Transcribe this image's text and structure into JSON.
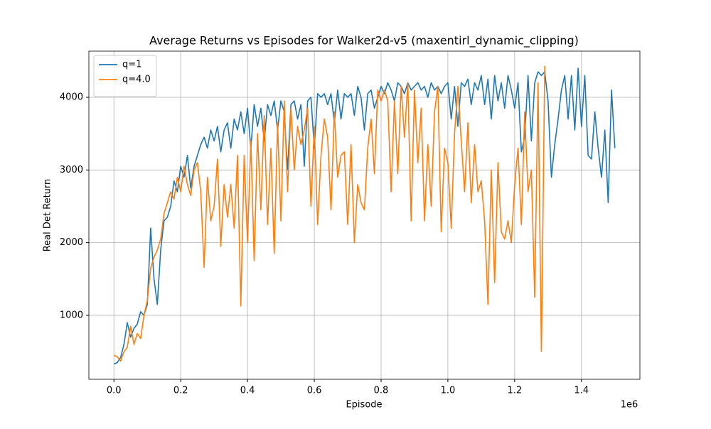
{
  "chart_data": {
    "type": "line",
    "title": "Average Returns vs Episodes for Walker2d-v5 (maxentirl_dynamic_clipping)",
    "x_label": "Episode",
    "x_offset_label": "1e6",
    "y_label": "Real Det Return",
    "x": [
      0,
      10000,
      20000,
      30000,
      40000,
      50000,
      60000,
      70000,
      80000,
      90000,
      100000,
      110000,
      120000,
      130000,
      140000,
      150000,
      160000,
      170000,
      180000,
      190000,
      200000,
      210000,
      220000,
      230000,
      240000,
      250000,
      260000,
      270000,
      280000,
      290000,
      300000,
      310000,
      320000,
      330000,
      340000,
      350000,
      360000,
      370000,
      380000,
      390000,
      400000,
      410000,
      420000,
      430000,
      440000,
      450000,
      460000,
      470000,
      480000,
      490000,
      500000,
      510000,
      520000,
      530000,
      540000,
      550000,
      560000,
      570000,
      580000,
      590000,
      600000,
      610000,
      620000,
      630000,
      640000,
      650000,
      660000,
      670000,
      680000,
      690000,
      700000,
      710000,
      720000,
      730000,
      740000,
      750000,
      760000,
      770000,
      780000,
      790000,
      800000,
      810000,
      820000,
      830000,
      840000,
      850000,
      860000,
      870000,
      880000,
      890000,
      900000,
      910000,
      920000,
      930000,
      940000,
      950000,
      960000,
      970000,
      980000,
      990000,
      1000000,
      1010000,
      1020000,
      1030000,
      1040000,
      1050000,
      1060000,
      1070000,
      1080000,
      1090000,
      1100000,
      1110000,
      1120000,
      1130000,
      1140000,
      1150000,
      1160000,
      1170000,
      1180000,
      1190000,
      1200000,
      1210000,
      1220000,
      1230000,
      1240000,
      1250000,
      1260000,
      1270000,
      1280000,
      1290000,
      1300000,
      1310000,
      1320000,
      1330000,
      1340000,
      1350000,
      1360000,
      1370000,
      1380000,
      1390000,
      1400000,
      1410000,
      1420000,
      1430000,
      1440000,
      1450000,
      1460000,
      1470000,
      1480000,
      1490000,
      1500000
    ],
    "series": [
      {
        "name": "q=1",
        "color": "#1f77b4",
        "values": [
          330,
          350,
          420,
          600,
          900,
          700,
          820,
          880,
          1050,
          1000,
          1150,
          2200,
          1500,
          1150,
          1900,
          2300,
          2350,
          2500,
          2850,
          2700,
          3050,
          2900,
          3200,
          2750,
          3050,
          3200,
          3350,
          3450,
          3300,
          3550,
          3400,
          3600,
          3250,
          3550,
          3650,
          3300,
          3700,
          3550,
          3800,
          3500,
          3850,
          3300,
          3900,
          3600,
          3850,
          3400,
          3900,
          3750,
          3950,
          3550,
          3950,
          3800,
          3000,
          3900,
          3950,
          3700,
          3900,
          3050,
          3950,
          4000,
          3300,
          4050,
          4000,
          4050,
          3900,
          4050,
          3650,
          4100,
          3700,
          4050,
          4000,
          4050,
          3750,
          4150,
          4000,
          3550,
          4050,
          4100,
          3850,
          4000,
          4150,
          4050,
          4200,
          4100,
          3950,
          4200,
          4150,
          4050,
          4200,
          4100,
          4150,
          4200,
          4100,
          4150,
          4000,
          4200,
          4100,
          4150,
          4050,
          4150,
          4200,
          3700,
          4150,
          3600,
          4200,
          4150,
          4250,
          3900,
          4200,
          4100,
          4300,
          3900,
          4250,
          3700,
          4300,
          3950,
          4200,
          3850,
          4300,
          4100,
          3850,
          4200,
          3250,
          3450,
          4300,
          3400,
          4200,
          4350,
          4300,
          4350,
          3950,
          2900,
          3350,
          3700,
          4100,
          4300,
          3700,
          4300,
          3550,
          4400,
          3600,
          4300,
          3200,
          3150,
          3800,
          3300,
          2900,
          3550,
          2550,
          4100,
          3300
        ]
      },
      {
        "name": "q=4.0",
        "color": "#ff7f0e",
        "values": [
          450,
          430,
          370,
          500,
          560,
          850,
          600,
          750,
          680,
          1000,
          1200,
          1650,
          1800,
          1900,
          2050,
          2400,
          2550,
          2700,
          2600,
          2900,
          2700,
          3050,
          2800,
          2650,
          3000,
          3100,
          2700,
          1660,
          2900,
          2300,
          2500,
          3150,
          1950,
          2800,
          2350,
          2800,
          2200,
          3200,
          1130,
          3200,
          2000,
          3400,
          1750,
          3500,
          2450,
          3750,
          2250,
          3300,
          1850,
          3650,
          2300,
          3950,
          2700,
          3850,
          3000,
          3600,
          3350,
          3550,
          3850,
          2500,
          3600,
          2250,
          3200,
          3700,
          3450,
          2450,
          3800,
          2900,
          3200,
          3250,
          2250,
          3350,
          2000,
          2800,
          2550,
          2450,
          3300,
          3700,
          2950,
          4100,
          3950,
          4100,
          3950,
          2700,
          3950,
          2950,
          4150,
          3450,
          4200,
          2300,
          4100,
          3100,
          3850,
          2300,
          3350,
          2500,
          3800,
          4150,
          2150,
          3300,
          3100,
          2200,
          3500,
          4150,
          3400,
          2700,
          3650,
          2550,
          3350,
          2700,
          2850,
          2300,
          1150,
          3000,
          1450,
          3100,
          2150,
          2050,
          2300,
          2000,
          2800,
          3300,
          2250,
          3800,
          2700,
          3000,
          1250,
          4200,
          500,
          4430,
          null,
          null,
          null,
          null,
          null,
          null,
          null,
          null,
          null,
          null,
          null,
          null,
          null,
          null,
          null,
          null,
          null,
          null,
          null,
          null,
          null
        ]
      }
    ],
    "xlim": [
      -75000,
      1575000
    ],
    "ylim": [
      120,
      4635
    ],
    "xticks": [
      {
        "value": 0,
        "label": "0.0"
      },
      {
        "value": 200000,
        "label": "0.2"
      },
      {
        "value": 400000,
        "label": "0.4"
      },
      {
        "value": 600000,
        "label": "0.6"
      },
      {
        "value": 800000,
        "label": "0.8"
      },
      {
        "value": 1000000,
        "label": "1.0"
      },
      {
        "value": 1200000,
        "label": "1.2"
      },
      {
        "value": 1400000,
        "label": "1.4"
      }
    ],
    "yticks": [
      1000,
      2000,
      3000,
      4000
    ],
    "grid": true,
    "legend": "upper left"
  }
}
